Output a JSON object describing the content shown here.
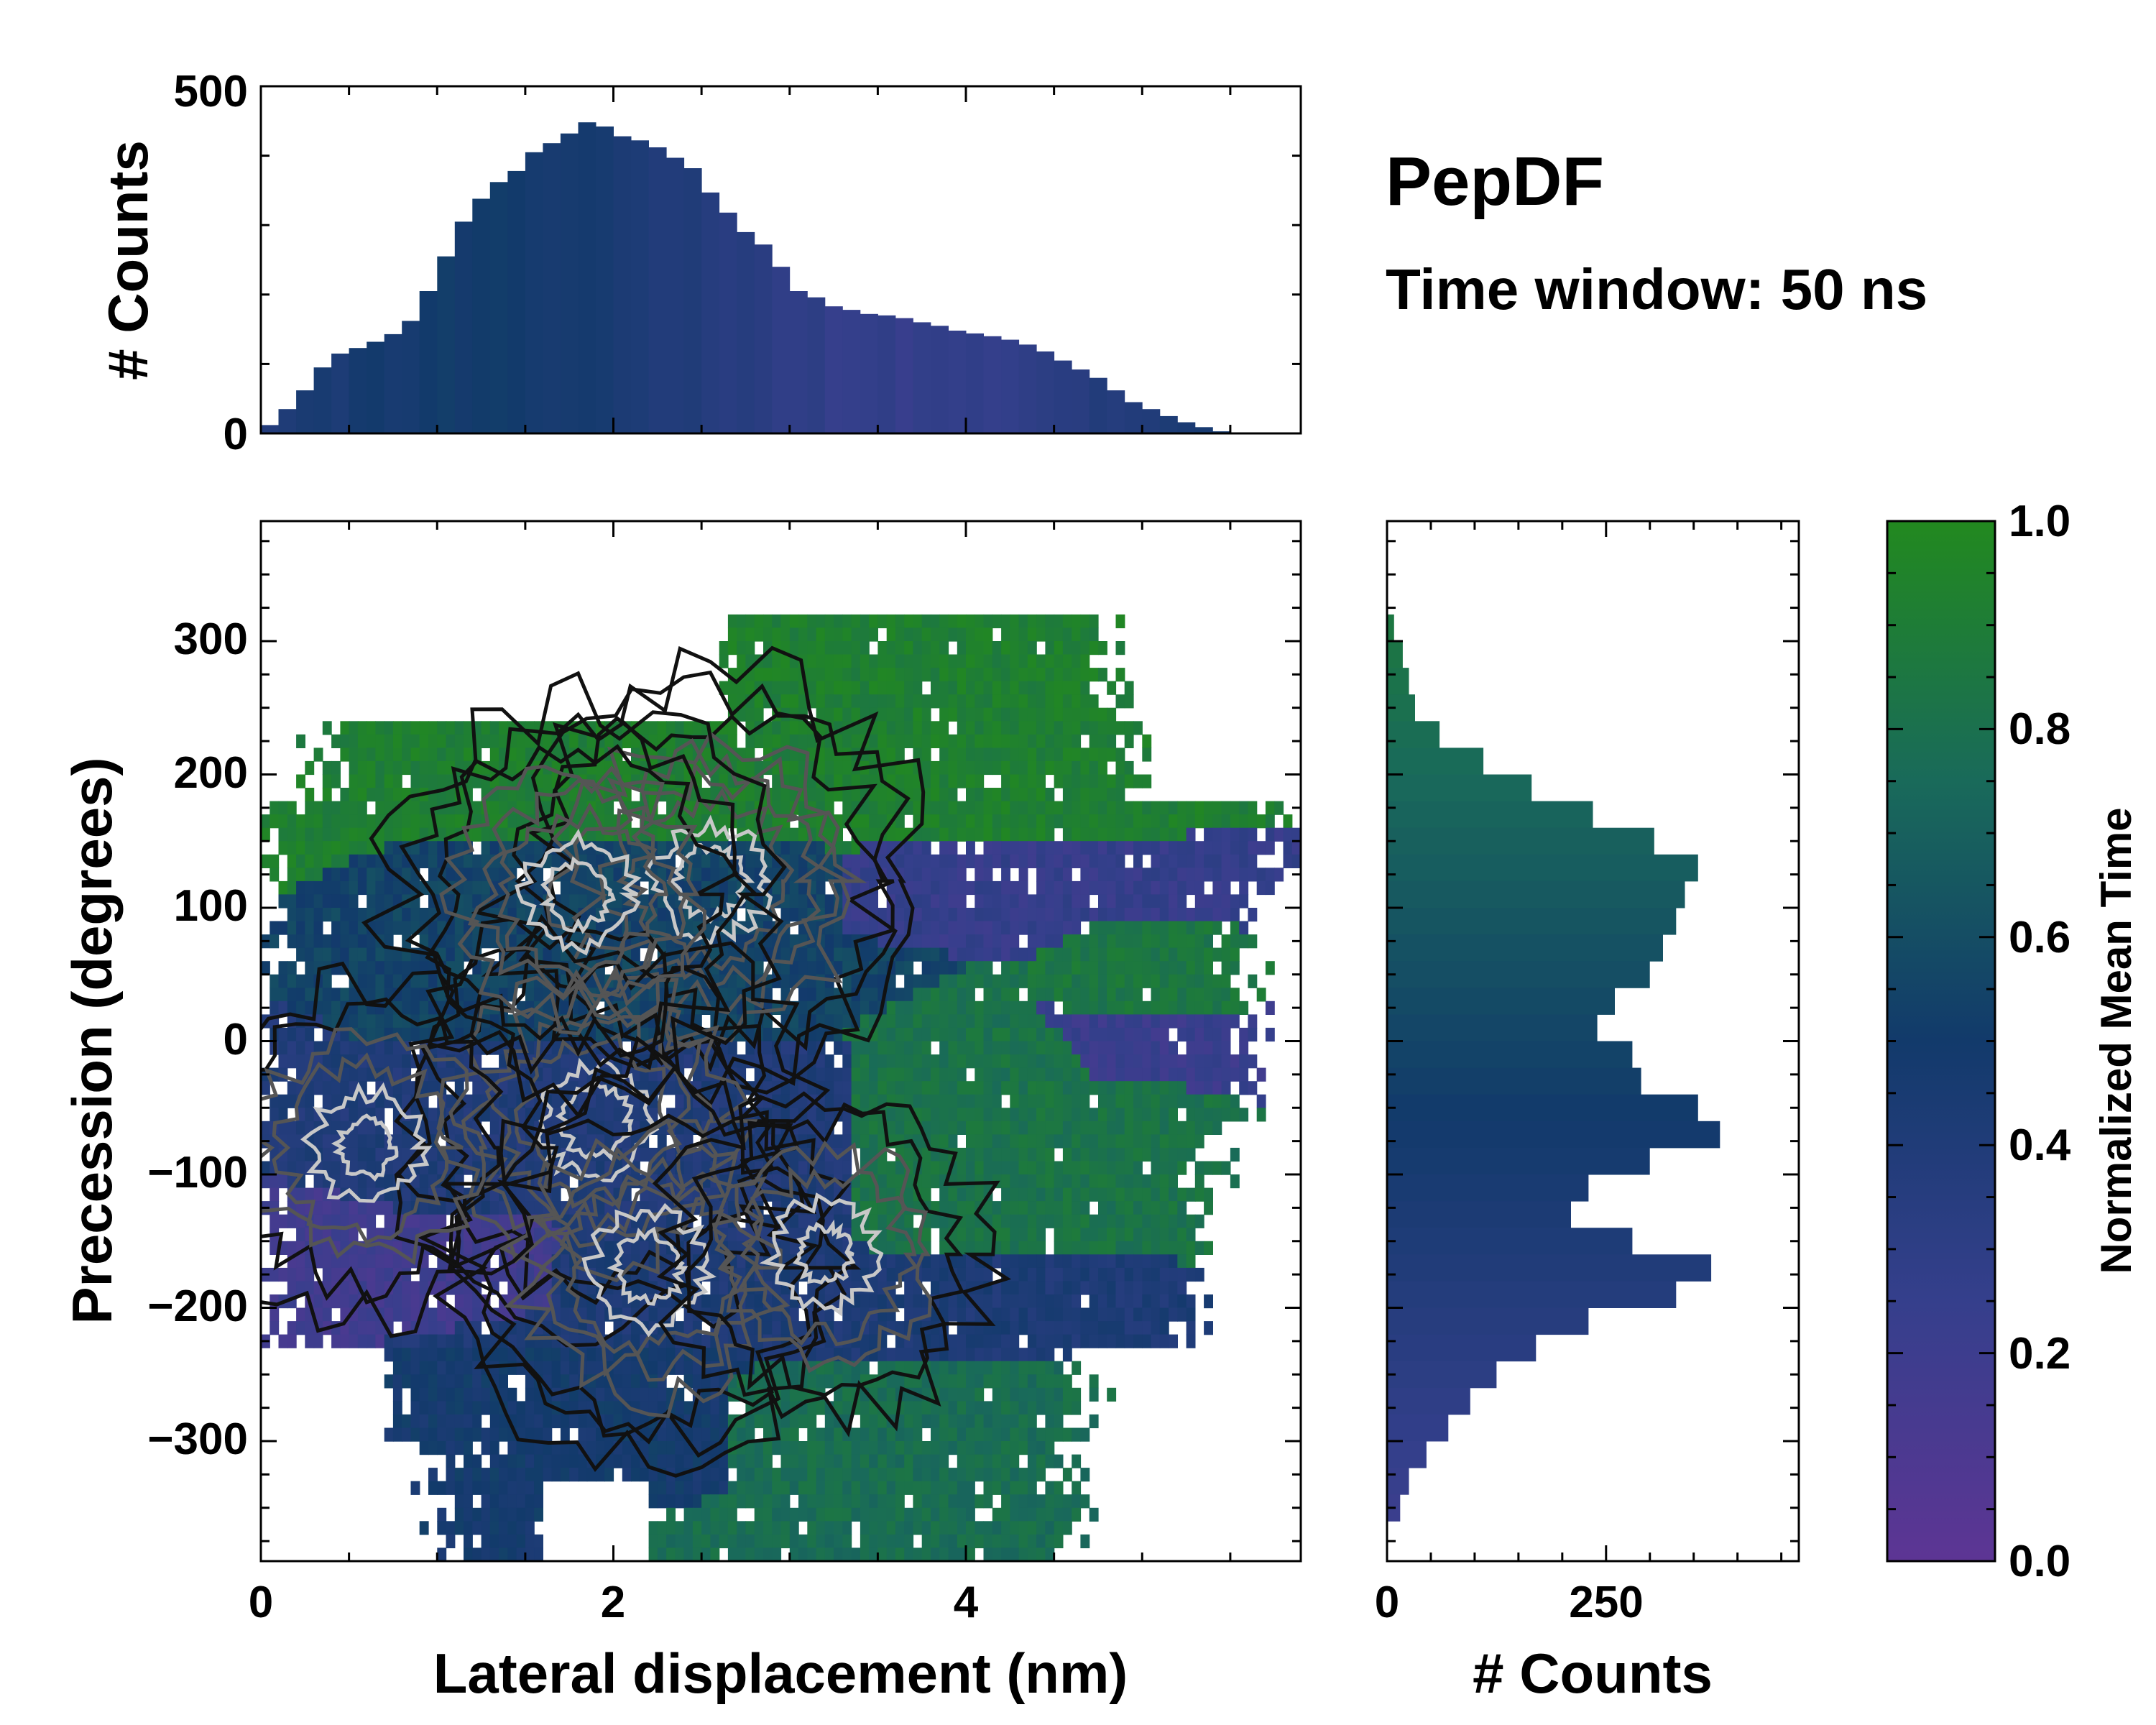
{
  "title": "PepDF",
  "subtitle": "Time window: 50 ns",
  "colors": {
    "purple": "#5d3594",
    "indigo": "#353f8c",
    "navy": "#123a6b",
    "teal": "#196a5a",
    "green": "#22891f",
    "contour_dark": "#111111",
    "contour_mid": "#555555",
    "contour_light": "#c8c8c8"
  },
  "chart_data": [
    {
      "id": "top-histogram",
      "type": "bar",
      "xlabel": "",
      "ylabel": "# Counts",
      "xlim": [
        0,
        5.9
      ],
      "ylim": [
        0,
        500
      ],
      "yticks": [
        0,
        500
      ],
      "ytick_labels": [
        "0",
        "500"
      ],
      "x": [
        0.05,
        0.15,
        0.25,
        0.35,
        0.45,
        0.55,
        0.65,
        0.75,
        0.85,
        0.95,
        1.05,
        1.15,
        1.25,
        1.35,
        1.45,
        1.55,
        1.65,
        1.75,
        1.85,
        1.95,
        2.05,
        2.15,
        2.25,
        2.35,
        2.45,
        2.55,
        2.65,
        2.75,
        2.85,
        2.95,
        3.05,
        3.15,
        3.25,
        3.35,
        3.45,
        3.55,
        3.65,
        3.75,
        3.85,
        3.95,
        4.05,
        4.15,
        4.25,
        4.35,
        4.45,
        4.55,
        4.65,
        4.75,
        4.85,
        4.95,
        5.05,
        5.15,
        5.25,
        5.35,
        5.45,
        5.55,
        5.65,
        5.75,
        5.85
      ],
      "values": [
        12,
        35,
        62,
        95,
        115,
        123,
        132,
        143,
        162,
        205,
        255,
        305,
        338,
        362,
        378,
        405,
        418,
        432,
        448,
        442,
        428,
        422,
        412,
        397,
        382,
        347,
        318,
        290,
        272,
        240,
        205,
        196,
        183,
        178,
        172,
        170,
        166,
        160,
        155,
        148,
        144,
        140,
        135,
        128,
        118,
        105,
        92,
        80,
        62,
        45,
        35,
        25,
        16,
        9,
        3,
        0,
        0,
        0,
        0
      ],
      "bar_color_scale": "mean-time-colormap"
    },
    {
      "id": "main-heatmap",
      "type": "heatmap",
      "xlabel": "Lateral displacement (nm)",
      "ylabel": "Precession (degrees)",
      "xlim": [
        0,
        5.9
      ],
      "ylim": [
        -390,
        390
      ],
      "xticks": [
        0,
        2,
        4
      ],
      "xtick_labels": [
        "0",
        "2",
        "4"
      ],
      "yticks": [
        300,
        200,
        100,
        0,
        -100,
        -200,
        -300
      ],
      "ytick_labels": [
        "300",
        "200",
        "100",
        "0",
        "−100",
        "−200",
        "−300"
      ],
      "regions": [
        {
          "name": "top-green",
          "mean_time": 0.92,
          "x_range": [
            0.1,
            4.9
          ],
          "y_range": [
            140,
            300
          ]
        },
        {
          "name": "upper-mid",
          "mean_time": 0.55,
          "x_range": [
            0.6,
            3.3
          ],
          "y_range": [
            0,
            170
          ]
        },
        {
          "name": "right-purple-upper",
          "mean_time": 0.25,
          "x_range": [
            3.3,
            5.8
          ],
          "y_range": [
            80,
            150
          ]
        },
        {
          "name": "right-green-upper",
          "mean_time": 0.85,
          "x_range": [
            4.6,
            5.6
          ],
          "y_range": [
            30,
            90
          ]
        },
        {
          "name": "right-purple-mid",
          "mean_time": 0.22,
          "x_range": [
            4.5,
            5.6
          ],
          "y_range": [
            -40,
            20
          ]
        },
        {
          "name": "right-green-mid",
          "mean_time": 0.82,
          "x_range": [
            3.3,
            5.4
          ],
          "y_range": [
            -170,
            10
          ]
        },
        {
          "name": "center-blue",
          "mean_time": 0.4,
          "x_range": [
            0.3,
            3.4
          ],
          "y_range": [
            -150,
            0
          ]
        },
        {
          "name": "left-purple",
          "mean_time": 0.18,
          "x_range": [
            0.15,
            1.8
          ],
          "y_range": [
            -210,
            -110
          ]
        },
        {
          "name": "lower-blue",
          "mean_time": 0.42,
          "x_range": [
            1.3,
            5.3
          ],
          "y_range": [
            -230,
            -150
          ]
        },
        {
          "name": "bottom-navy",
          "mean_time": 0.48,
          "x_range": [
            0.7,
            2.7
          ],
          "y_range": [
            -340,
            -240
          ]
        },
        {
          "name": "bottom-green",
          "mean_time": 0.78,
          "x_range": [
            2.6,
            4.6
          ],
          "y_range": [
            -380,
            -250
          ]
        }
      ],
      "contour_peaks": [
        {
          "x": 2.55,
          "y": 120,
          "density": 1.0
        },
        {
          "x": 1.9,
          "y": -60,
          "density": 0.95
        },
        {
          "x": 2.2,
          "y": -170,
          "density": 0.9
        },
        {
          "x": 1.8,
          "y": 110,
          "density": 0.8
        },
        {
          "x": 0.6,
          "y": -80,
          "density": 0.55
        },
        {
          "x": 3.2,
          "y": -160,
          "density": 0.5
        }
      ]
    },
    {
      "id": "right-histogram",
      "type": "bar",
      "orientation": "horizontal",
      "xlabel": "# Counts",
      "ylabel": "",
      "xlim": [
        0,
        470
      ],
      "ylim": [
        -390,
        390
      ],
      "xticks": [
        0,
        250
      ],
      "xtick_labels": [
        "0",
        "250"
      ],
      "y": [
        310,
        290,
        270,
        250,
        230,
        210,
        190,
        170,
        150,
        130,
        110,
        90,
        70,
        50,
        30,
        10,
        -10,
        -30,
        -50,
        -70,
        -90,
        -110,
        -130,
        -150,
        -170,
        -190,
        -210,
        -230,
        -250,
        -270,
        -290,
        -310,
        -330,
        -350
      ],
      "values": [
        8,
        18,
        25,
        32,
        60,
        110,
        165,
        235,
        305,
        355,
        340,
        330,
        315,
        300,
        260,
        240,
        280,
        290,
        355,
        380,
        300,
        230,
        210,
        280,
        370,
        330,
        230,
        170,
        125,
        95,
        70,
        45,
        25,
        15
      ],
      "bar_color_scale": "mean-time-colormap"
    },
    {
      "id": "colorbar",
      "type": "colorbar",
      "label": "Normalized Mean Time",
      "range": [
        0.0,
        1.0
      ],
      "ticks": [
        0.0,
        0.2,
        0.4,
        0.6,
        0.8,
        1.0
      ],
      "tick_labels": [
        "0.0",
        "0.2",
        "0.4",
        "0.6",
        "0.8",
        "1.0"
      ],
      "stops": [
        {
          "value": 0.0,
          "color": "#5d3594"
        },
        {
          "value": 0.25,
          "color": "#353f8c"
        },
        {
          "value": 0.5,
          "color": "#123a6b"
        },
        {
          "value": 0.75,
          "color": "#196a5a"
        },
        {
          "value": 1.0,
          "color": "#22891f"
        }
      ]
    }
  ]
}
